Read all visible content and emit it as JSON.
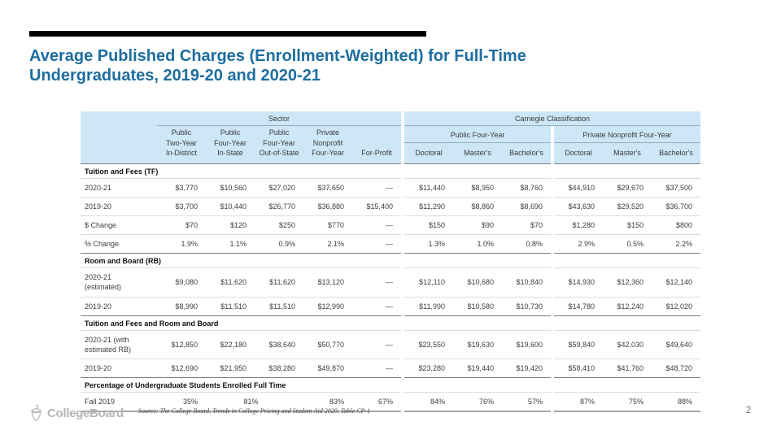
{
  "slide": {
    "title": "Average Published Charges (Enrollment-Weighted) for Full-Time\nUndergraduates, 2019-20 and 2020-21",
    "page_number": "2",
    "source_text": "Source: The College Board, Trends in College Pricing and Student Aid 2020, Table CP-1",
    "logo_text": "CollegeBoard",
    "colors": {
      "title_blue": "#1d6d9f",
      "header_bg": "#cde7f6",
      "accent_bar": "#000000"
    }
  },
  "table": {
    "header": {
      "sector_label": "Sector",
      "carnegie_label": "Carnegie Classification",
      "sector_columns": [
        "Public\nTwo-Year\nIn-District",
        "Public\nFour-Year\nIn-State",
        "Public\nFour-Year\nOut-of-State",
        "Private\nNonprofit\nFour-Year",
        "For-Profit"
      ],
      "carnegie_groups": [
        {
          "label": "Public Four-Year",
          "columns": [
            "Doctoral",
            "Master's",
            "Bachelor's"
          ]
        },
        {
          "label": "Private Nonprofit Four-Year",
          "columns": [
            "Doctoral",
            "Master's",
            "Bachelor's"
          ]
        }
      ]
    },
    "sections": [
      {
        "title": "Tuition and Fees (TF)",
        "rows": [
          {
            "label": "2020-21",
            "cells": [
              "$3,770",
              "$10,560",
              "$27,020",
              "$37,650",
              "—",
              "$11,440",
              "$8,950",
              "$8,760",
              "$44,910",
              "$29,670",
              "$37,500"
            ]
          },
          {
            "label": "2019-20",
            "cells": [
              "$3,700",
              "$10,440",
              "$26,770",
              "$36,880",
              "$15,400",
              "$11,290",
              "$8,860",
              "$8,690",
              "$43,630",
              "$29,520",
              "$36,700"
            ]
          },
          {
            "label": "$ Change",
            "cells": [
              "$70",
              "$120",
              "$250",
              "$770",
              "—",
              "$150",
              "$90",
              "$70",
              "$1,280",
              "$150",
              "$800"
            ]
          },
          {
            "label": "% Change",
            "cells": [
              "1.9%",
              "1.1%",
              "0.9%",
              "2.1%",
              "—",
              "1.3%",
              "1.0%",
              "0.8%",
              "2.9%",
              "0.5%",
              "2.2%"
            ]
          }
        ]
      },
      {
        "title": "Room and Board (RB)",
        "rows": [
          {
            "label": "2020-21\n(estimated)",
            "cells": [
              "$9,080",
              "$11,620",
              "$11,620",
              "$13,120",
              "—",
              "$12,110",
              "$10,680",
              "$10,840",
              "$14,930",
              "$12,360",
              "$12,140"
            ]
          },
          {
            "label": "2019-20",
            "cells": [
              "$8,990",
              "$11,510",
              "$11,510",
              "$12,990",
              "—",
              "$11,990",
              "$10,580",
              "$10,730",
              "$14,780",
              "$12,240",
              "$12,020"
            ]
          }
        ]
      },
      {
        "title": "Tuition and Fees and Room and Board",
        "rows": [
          {
            "label": "2020-21 (with\nestimated RB)",
            "cells": [
              "$12,850",
              "$22,180",
              "$38,640",
              "$50,770",
              "—",
              "$23,550",
              "$19,630",
              "$19,600",
              "$59,840",
              "$42,030",
              "$49,640"
            ]
          },
          {
            "label": "2019-20",
            "cells": [
              "$12,690",
              "$21,950",
              "$38,280",
              "$49,870",
              "—",
              "$23,280",
              "$19,440",
              "$19,420",
              "$58,410",
              "$41,760",
              "$48,720"
            ]
          }
        ]
      },
      {
        "title": "Percentage of Undergraduate Students Enrolled Full Time",
        "rows": [
          {
            "label": "Fall 2019",
            "cells": [
              "35%",
              {
                "t": "81%",
                "cs": 2,
                "a": "c"
              },
              "83%",
              "67%",
              "84%",
              "76%",
              "57%",
              "87%",
              "75%",
              "88%"
            ]
          }
        ]
      }
    ]
  }
}
